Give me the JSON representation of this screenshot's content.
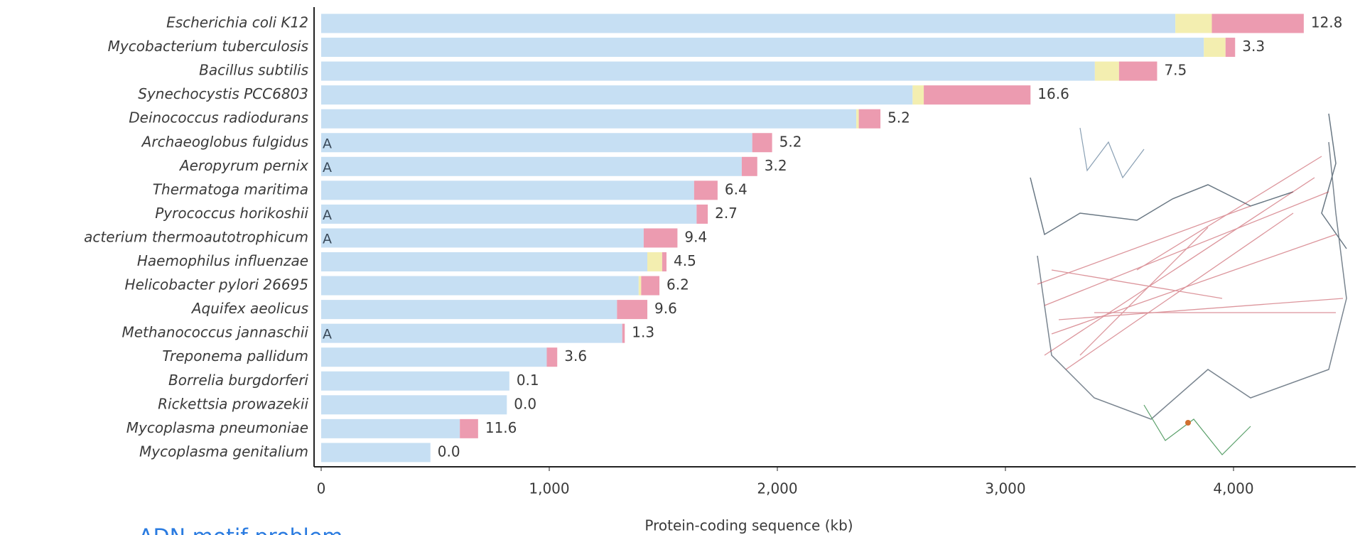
{
  "chart_data": {
    "type": "bar",
    "orientation": "horizontal",
    "stacked": true,
    "x_label": "Protein-coding sequence (kb)",
    "overlay_text": "ADN motif problem",
    "categories": [
      "Escherichia coli K12",
      "Mycobacterium tuberculosis",
      "Bacillus subtilis",
      "Synechocystis PCC6803",
      "Deinococcus radiodurans",
      "Archaeoglobus fulgidus",
      "Aeropyrum pernix",
      "Thermatoga maritima",
      "Pyrococcus horikoshii",
      "acterium thermoautotrophicum",
      "Haemophilus influenzae",
      "Helicobacter pylori 26695",
      "Aquifex aeolicus",
      "Methanococcus jannaschii",
      "Treponema pallidum",
      "Borrelia burgdorferi",
      "Rickettsia prowazekii",
      "Mycoplasma pneumoniae",
      "Mycoplasma genitalium"
    ],
    "markers": [
      null,
      null,
      null,
      null,
      null,
      "A",
      "A",
      null,
      "A",
      "A",
      null,
      null,
      null,
      "A",
      null,
      null,
      null,
      null,
      null
    ],
    "series": [
      {
        "color": "#c6dff3",
        "values": [
          3745,
          3870,
          3392,
          2593,
          2346,
          1890,
          1844,
          1635,
          1646,
          1414,
          1430,
          1392,
          1297,
          1320,
          989,
          825,
          814,
          608,
          479
        ]
      },
      {
        "color": "#f3eeb0",
        "values": [
          160,
          95,
          106,
          49,
          11,
          0,
          0,
          0,
          0,
          0,
          65,
          11,
          0,
          0,
          0,
          0,
          0,
          0,
          0
        ]
      },
      {
        "color": "#ec9bb0",
        "values": [
          403,
          42,
          167,
          468,
          95,
          87,
          68,
          103,
          49,
          148,
          19,
          80,
          133,
          11,
          46,
          0,
          0,
          80,
          0
        ]
      }
    ],
    "percent_labels": [
      "12.8",
      "3.3",
      "7.5",
      "16.6",
      "5.2",
      "5.2",
      "3.2",
      "6.4",
      "2.7",
      "9.4",
      "4.5",
      "6.2",
      "9.6",
      "1.3",
      "3.6",
      "0.1",
      "0.0",
      "11.6",
      "0.0"
    ],
    "xlim": [
      0,
      4500
    ],
    "xticks": [
      0,
      {
        "value": 1000,
        "label": "1,000"
      },
      {
        "value": 2000,
        "label": "2,000"
      },
      {
        "value": 3000,
        "label": "3,000"
      },
      {
        "value": 4000,
        "label": "4,000"
      }
    ]
  }
}
